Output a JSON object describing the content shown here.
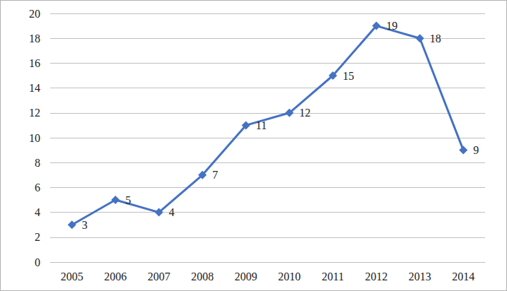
{
  "chart_data": {
    "type": "line",
    "categories": [
      "2005",
      "2006",
      "2007",
      "2008",
      "2009",
      "2010",
      "2011",
      "2012",
      "2013",
      "2014"
    ],
    "values": [
      3,
      5,
      4,
      7,
      11,
      12,
      15,
      19,
      18,
      9
    ],
    "color": "#4472c4",
    "marker": "diamond",
    "ylim": [
      0,
      20
    ],
    "yticks": [
      0,
      2,
      4,
      6,
      8,
      10,
      12,
      14,
      16,
      18,
      20
    ],
    "grid": true,
    "data_labels": true
  }
}
